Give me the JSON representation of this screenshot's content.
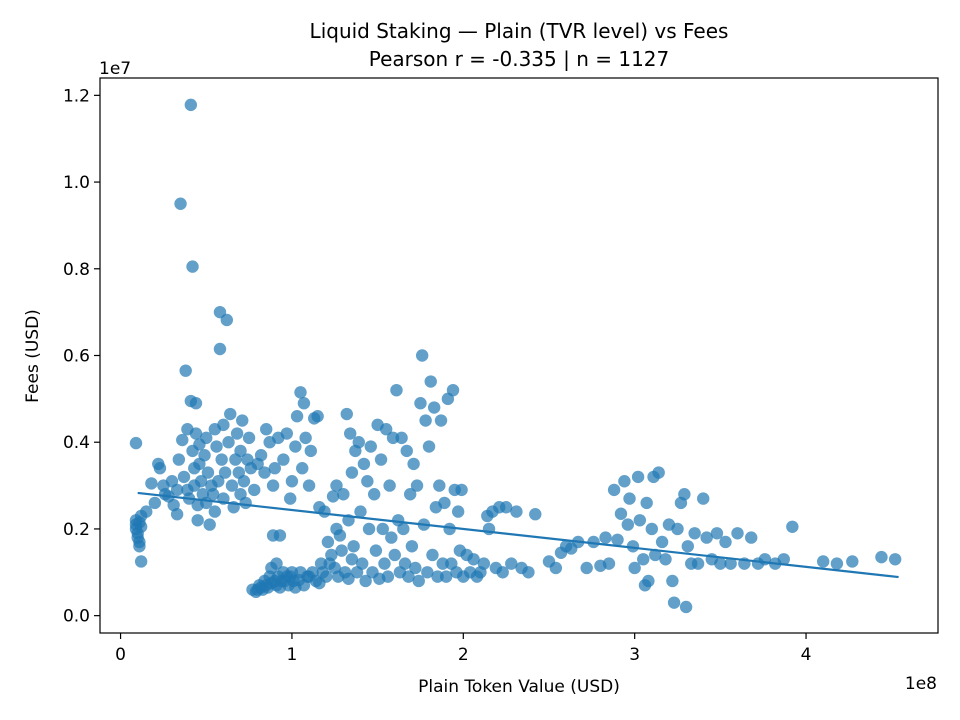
{
  "chart_data": {
    "type": "scatter",
    "title": "Liquid Staking — Plain (TVR level) vs Fees",
    "subtitle": "Pearson r = -0.335 | n = 1127",
    "xlabel": "Plain Token Value (USD)",
    "ylabel": "Fees (USD)",
    "x_multiplier": "1e8",
    "y_multiplier": "1e7",
    "xlim": [
      -0.12,
      4.77
    ],
    "ylim": [
      -0.04,
      1.24
    ],
    "x_ticks": [
      {
        "value": 0,
        "label": "0"
      },
      {
        "value": 1,
        "label": "1"
      },
      {
        "value": 2,
        "label": "2"
      },
      {
        "value": 3,
        "label": "3"
      },
      {
        "value": 4,
        "label": "4"
      }
    ],
    "y_ticks": [
      {
        "value": 0.0,
        "label": "0.0"
      },
      {
        "value": 0.2,
        "label": "0.2"
      },
      {
        "value": 0.4,
        "label": "0.4"
      },
      {
        "value": 0.6,
        "label": "0.6"
      },
      {
        "value": 0.8,
        "label": "0.8"
      },
      {
        "value": 1.0,
        "label": "1.0"
      },
      {
        "value": 1.2,
        "label": "1.2"
      }
    ],
    "grid": false,
    "legend": "none",
    "point_color": "#1f77b4",
    "line_color": "#1f77b4",
    "fit_line": {
      "x": [
        0.1,
        4.54
      ],
      "y": [
        0.283,
        0.089
      ]
    },
    "series": [
      {
        "values": [
          [
            0.09,
            0.398
          ],
          [
            0.09,
            0.22
          ],
          [
            0.09,
            0.21
          ],
          [
            0.09,
            0.2
          ],
          [
            0.1,
            0.19
          ],
          [
            0.1,
            0.18
          ],
          [
            0.11,
            0.215
          ],
          [
            0.11,
            0.17
          ],
          [
            0.11,
            0.16
          ],
          [
            0.12,
            0.125
          ],
          [
            0.12,
            0.23
          ],
          [
            0.12,
            0.205
          ],
          [
            0.15,
            0.24
          ],
          [
            0.18,
            0.305
          ],
          [
            0.2,
            0.26
          ],
          [
            0.22,
            0.35
          ],
          [
            0.23,
            0.34
          ],
          [
            0.25,
            0.3
          ],
          [
            0.26,
            0.28
          ],
          [
            0.28,
            0.275
          ],
          [
            0.3,
            0.31
          ],
          [
            0.31,
            0.255
          ],
          [
            0.33,
            0.29
          ],
          [
            0.33,
            0.234
          ],
          [
            0.34,
            0.36
          ],
          [
            0.35,
            0.95
          ],
          [
            0.36,
            0.405
          ],
          [
            0.37,
            0.32
          ],
          [
            0.38,
            0.565
          ],
          [
            0.39,
            0.43
          ],
          [
            0.39,
            0.29
          ],
          [
            0.4,
            0.27
          ],
          [
            0.41,
            1.178
          ],
          [
            0.41,
            0.495
          ],
          [
            0.42,
            0.805
          ],
          [
            0.42,
            0.38
          ],
          [
            0.43,
            0.34
          ],
          [
            0.43,
            0.3
          ],
          [
            0.44,
            0.49
          ],
          [
            0.44,
            0.42
          ],
          [
            0.45,
            0.255
          ],
          [
            0.45,
            0.22
          ],
          [
            0.46,
            0.395
          ],
          [
            0.46,
            0.35
          ],
          [
            0.47,
            0.31
          ],
          [
            0.48,
            0.28
          ],
          [
            0.49,
            0.37
          ],
          [
            0.5,
            0.26
          ],
          [
            0.5,
            0.41
          ],
          [
            0.51,
            0.33
          ],
          [
            0.52,
            0.21
          ],
          [
            0.53,
            0.3
          ],
          [
            0.54,
            0.28
          ],
          [
            0.55,
            0.43
          ],
          [
            0.55,
            0.24
          ],
          [
            0.56,
            0.39
          ],
          [
            0.57,
            0.31
          ],
          [
            0.58,
            0.7
          ],
          [
            0.58,
            0.615
          ],
          [
            0.59,
            0.36
          ],
          [
            0.6,
            0.44
          ],
          [
            0.6,
            0.27
          ],
          [
            0.61,
            0.33
          ],
          [
            0.62,
            0.682
          ],
          [
            0.63,
            0.4
          ],
          [
            0.64,
            0.465
          ],
          [
            0.65,
            0.3
          ],
          [
            0.66,
            0.25
          ],
          [
            0.67,
            0.36
          ],
          [
            0.68,
            0.42
          ],
          [
            0.69,
            0.33
          ],
          [
            0.7,
            0.28
          ],
          [
            0.7,
            0.38
          ],
          [
            0.71,
            0.45
          ],
          [
            0.72,
            0.31
          ],
          [
            0.73,
            0.26
          ],
          [
            0.74,
            0.36
          ],
          [
            0.75,
            0.41
          ],
          [
            0.76,
            0.34
          ],
          [
            0.77,
            0.06
          ],
          [
            0.78,
            0.29
          ],
          [
            0.79,
            0.055
          ],
          [
            0.8,
            0.35
          ],
          [
            0.8,
            0.06
          ],
          [
            0.81,
            0.07
          ],
          [
            0.82,
            0.065
          ],
          [
            0.82,
            0.37
          ],
          [
            0.83,
            0.06
          ],
          [
            0.84,
            0.08
          ],
          [
            0.84,
            0.33
          ],
          [
            0.85,
            0.07
          ],
          [
            0.85,
            0.43
          ],
          [
            0.86,
            0.065
          ],
          [
            0.87,
            0.09
          ],
          [
            0.87,
            0.4
          ],
          [
            0.88,
            0.075
          ],
          [
            0.88,
            0.11
          ],
          [
            0.89,
            0.3
          ],
          [
            0.89,
            0.185
          ],
          [
            0.9,
            0.08
          ],
          [
            0.9,
            0.34
          ],
          [
            0.91,
            0.07
          ],
          [
            0.91,
            0.12
          ],
          [
            0.92,
            0.41
          ],
          [
            0.92,
            0.09
          ],
          [
            0.93,
            0.185
          ],
          [
            0.93,
            0.065
          ],
          [
            0.94,
            0.08
          ],
          [
            0.95,
            0.36
          ],
          [
            0.95,
            0.1
          ],
          [
            0.96,
            0.08
          ],
          [
            0.97,
            0.42
          ],
          [
            0.97,
            0.09
          ],
          [
            0.98,
            0.07
          ],
          [
            0.99,
            0.27
          ],
          [
            0.99,
            0.09
          ],
          [
            1.0,
            0.1
          ],
          [
            1.0,
            0.31
          ],
          [
            1.01,
            0.08
          ],
          [
            1.02,
            0.39
          ],
          [
            1.02,
            0.065
          ],
          [
            1.03,
            0.46
          ],
          [
            1.04,
            0.082
          ],
          [
            1.05,
            0.515
          ],
          [
            1.05,
            0.1
          ],
          [
            1.06,
            0.34
          ],
          [
            1.07,
            0.49
          ],
          [
            1.07,
            0.07
          ],
          [
            1.08,
            0.41
          ],
          [
            1.09,
            0.09
          ],
          [
            1.1,
            0.3
          ],
          [
            1.1,
            0.09
          ],
          [
            1.11,
            0.38
          ],
          [
            1.12,
            0.1
          ],
          [
            1.13,
            0.455
          ],
          [
            1.14,
            0.08
          ],
          [
            1.15,
            0.46
          ],
          [
            1.16,
            0.075
          ],
          [
            1.16,
            0.25
          ],
          [
            1.17,
            0.12
          ],
          [
            1.18,
            0.1
          ],
          [
            1.19,
            0.24
          ],
          [
            1.2,
            0.09
          ],
          [
            1.21,
            0.17
          ],
          [
            1.22,
            0.12
          ],
          [
            1.23,
            0.14
          ],
          [
            1.24,
            0.275
          ],
          [
            1.25,
            0.11
          ],
          [
            1.26,
            0.3
          ],
          [
            1.26,
            0.2
          ],
          [
            1.27,
            0.09
          ],
          [
            1.28,
            0.185
          ],
          [
            1.29,
            0.15
          ],
          [
            1.3,
            0.28
          ],
          [
            1.31,
            0.1
          ],
          [
            1.32,
            0.465
          ],
          [
            1.33,
            0.085
          ],
          [
            1.33,
            0.22
          ],
          [
            1.34,
            0.42
          ],
          [
            1.35,
            0.13
          ],
          [
            1.35,
            0.33
          ],
          [
            1.36,
            0.16
          ],
          [
            1.37,
            0.38
          ],
          [
            1.38,
            0.1
          ],
          [
            1.39,
            0.4
          ],
          [
            1.4,
            0.24
          ],
          [
            1.41,
            0.12
          ],
          [
            1.42,
            0.35
          ],
          [
            1.43,
            0.08
          ],
          [
            1.44,
            0.31
          ],
          [
            1.45,
            0.2
          ],
          [
            1.46,
            0.39
          ],
          [
            1.47,
            0.1
          ],
          [
            1.48,
            0.28
          ],
          [
            1.49,
            0.15
          ],
          [
            1.5,
            0.44
          ],
          [
            1.51,
            0.085
          ],
          [
            1.52,
            0.36
          ],
          [
            1.53,
            0.2
          ],
          [
            1.54,
            0.12
          ],
          [
            1.55,
            0.43
          ],
          [
            1.56,
            0.09
          ],
          [
            1.57,
            0.3
          ],
          [
            1.58,
            0.18
          ],
          [
            1.59,
            0.41
          ],
          [
            1.6,
            0.14
          ],
          [
            1.61,
            0.52
          ],
          [
            1.62,
            0.22
          ],
          [
            1.63,
            0.1
          ],
          [
            1.64,
            0.41
          ],
          [
            1.65,
            0.2
          ],
          [
            1.66,
            0.12
          ],
          [
            1.67,
            0.38
          ],
          [
            1.68,
            0.09
          ],
          [
            1.69,
            0.28
          ],
          [
            1.7,
            0.16
          ],
          [
            1.71,
            0.35
          ],
          [
            1.72,
            0.11
          ],
          [
            1.73,
            0.3
          ],
          [
            1.74,
            0.08
          ],
          [
            1.75,
            0.49
          ],
          [
            1.76,
            0.6
          ],
          [
            1.77,
            0.21
          ],
          [
            1.78,
            0.45
          ],
          [
            1.79,
            0.1
          ],
          [
            1.8,
            0.39
          ],
          [
            1.81,
            0.54
          ],
          [
            1.82,
            0.14
          ],
          [
            1.83,
            0.48
          ],
          [
            1.84,
            0.25
          ],
          [
            1.85,
            0.09
          ],
          [
            1.86,
            0.3
          ],
          [
            1.87,
            0.45
          ],
          [
            1.88,
            0.12
          ],
          [
            1.89,
            0.26
          ],
          [
            1.9,
            0.09
          ],
          [
            1.91,
            0.5
          ],
          [
            1.92,
            0.2
          ],
          [
            1.93,
            0.12
          ],
          [
            1.94,
            0.52
          ],
          [
            1.95,
            0.29
          ],
          [
            1.96,
            0.1
          ],
          [
            1.97,
            0.24
          ],
          [
            1.98,
            0.15
          ],
          [
            1.99,
            0.29
          ],
          [
            2.0,
            0.09
          ],
          [
            2.02,
            0.14
          ],
          [
            2.04,
            0.1
          ],
          [
            2.06,
            0.13
          ],
          [
            2.08,
            0.09
          ],
          [
            2.1,
            0.1
          ],
          [
            2.12,
            0.12
          ],
          [
            2.14,
            0.23
          ],
          [
            2.15,
            0.2
          ],
          [
            2.17,
            0.24
          ],
          [
            2.19,
            0.11
          ],
          [
            2.21,
            0.25
          ],
          [
            2.23,
            0.1
          ],
          [
            2.25,
            0.25
          ],
          [
            2.28,
            0.12
          ],
          [
            2.31,
            0.24
          ],
          [
            2.34,
            0.11
          ],
          [
            2.38,
            0.1
          ],
          [
            2.42,
            0.234
          ],
          [
            2.5,
            0.125
          ],
          [
            2.54,
            0.11
          ],
          [
            2.57,
            0.145
          ],
          [
            2.6,
            0.16
          ],
          [
            2.63,
            0.155
          ],
          [
            2.67,
            0.17
          ],
          [
            2.72,
            0.11
          ],
          [
            2.76,
            0.17
          ],
          [
            2.8,
            0.115
          ],
          [
            2.83,
            0.18
          ],
          [
            2.85,
            0.12
          ],
          [
            2.88,
            0.29
          ],
          [
            2.9,
            0.175
          ],
          [
            2.92,
            0.235
          ],
          [
            2.94,
            0.31
          ],
          [
            2.96,
            0.21
          ],
          [
            2.97,
            0.27
          ],
          [
            2.99,
            0.16
          ],
          [
            3.0,
            0.11
          ],
          [
            3.02,
            0.32
          ],
          [
            3.03,
            0.22
          ],
          [
            3.05,
            0.13
          ],
          [
            3.06,
            0.07
          ],
          [
            3.07,
            0.26
          ],
          [
            3.08,
            0.08
          ],
          [
            3.1,
            0.2
          ],
          [
            3.11,
            0.32
          ],
          [
            3.12,
            0.14
          ],
          [
            3.14,
            0.33
          ],
          [
            3.16,
            0.17
          ],
          [
            3.18,
            0.13
          ],
          [
            3.2,
            0.21
          ],
          [
            3.22,
            0.08
          ],
          [
            3.23,
            0.03
          ],
          [
            3.25,
            0.2
          ],
          [
            3.27,
            0.26
          ],
          [
            3.29,
            0.28
          ],
          [
            3.3,
            0.02
          ],
          [
            3.31,
            0.16
          ],
          [
            3.33,
            0.12
          ],
          [
            3.35,
            0.19
          ],
          [
            3.37,
            0.12
          ],
          [
            3.4,
            0.27
          ],
          [
            3.42,
            0.18
          ],
          [
            3.45,
            0.13
          ],
          [
            3.48,
            0.19
          ],
          [
            3.5,
            0.12
          ],
          [
            3.53,
            0.17
          ],
          [
            3.56,
            0.12
          ],
          [
            3.6,
            0.19
          ],
          [
            3.64,
            0.12
          ],
          [
            3.68,
            0.18
          ],
          [
            3.72,
            0.12
          ],
          [
            3.76,
            0.13
          ],
          [
            3.82,
            0.12
          ],
          [
            3.87,
            0.13
          ],
          [
            3.92,
            0.205
          ],
          [
            4.1,
            0.125
          ],
          [
            4.18,
            0.12
          ],
          [
            4.27,
            0.125
          ],
          [
            4.44,
            0.135
          ],
          [
            4.52,
            0.13
          ]
        ]
      }
    ]
  }
}
